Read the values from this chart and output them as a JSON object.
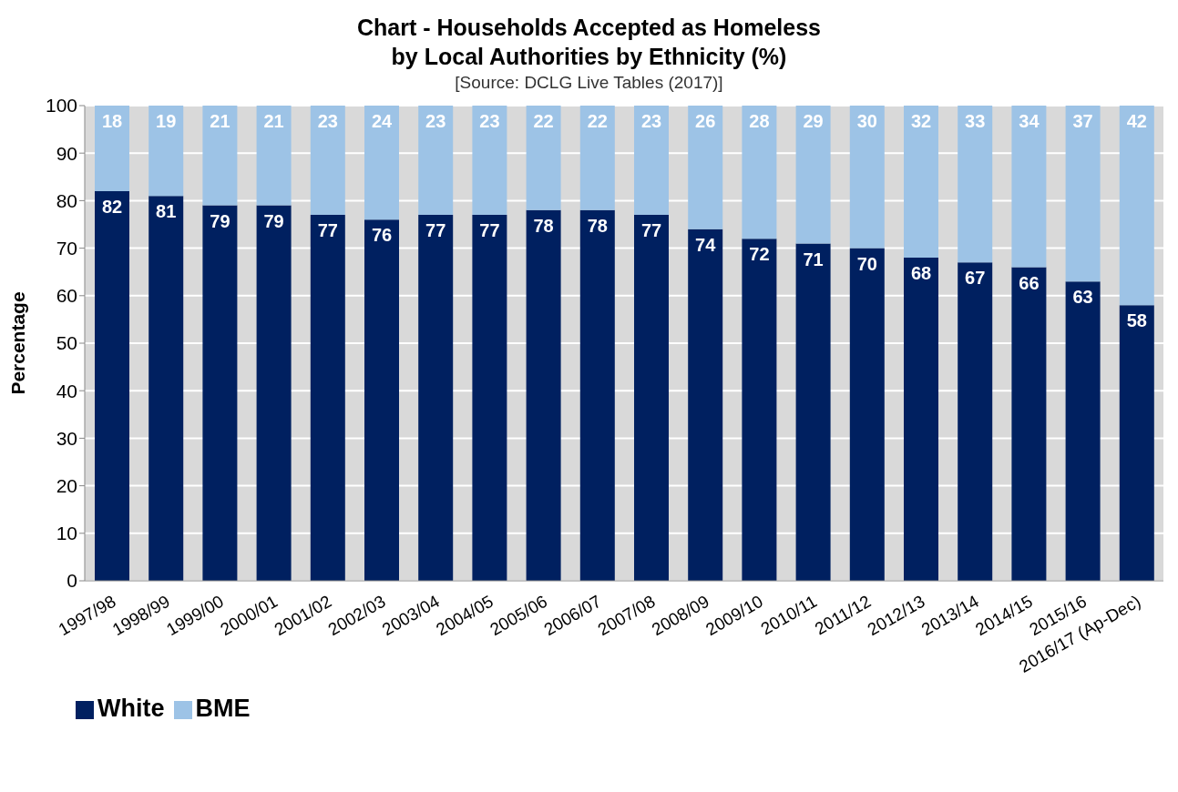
{
  "chart_data": {
    "type": "bar",
    "title": "Chart - Households Accepted as Homeless\nby Local Authorities by Ethnicity (%)",
    "annotations": [
      "[Source: DCLG Live Tables (2017)]"
    ],
    "ylabel": "Percentage",
    "categories": [
      "1997/98",
      "1998/99",
      "1999/00",
      "2000/01",
      "2001/02",
      "2002/03",
      "2003/04",
      "2004/05",
      "2005/06",
      "2006/07",
      "2007/08",
      "2008/09",
      "2009/10",
      "2010/11",
      "2011/12",
      "2012/13",
      "2013/14",
      "2014/15",
      "2015/16",
      "2016/17 (Ap-Dec)"
    ],
    "series": [
      {
        "name": "White",
        "color": "#002060",
        "values": [
          82,
          81,
          79,
          79,
          77,
          76,
          77,
          77,
          78,
          78,
          77,
          74,
          72,
          71,
          70,
          68,
          67,
          66,
          63,
          58
        ]
      },
      {
        "name": "BME",
        "color": "#9dc3e6",
        "values": [
          18,
          19,
          21,
          21,
          23,
          24,
          23,
          23,
          22,
          22,
          23,
          26,
          28,
          29,
          30,
          32,
          33,
          34,
          37,
          42
        ]
      }
    ],
    "stacked": true,
    "ylim": [
      0,
      100
    ],
    "yticks": [
      0,
      10,
      20,
      30,
      40,
      50,
      60,
      70,
      80,
      90,
      100
    ],
    "grid": "y",
    "legend": "bottom left",
    "data_labels": true
  }
}
